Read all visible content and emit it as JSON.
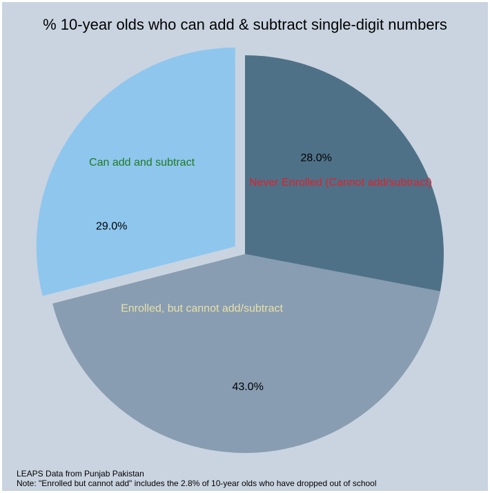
{
  "chart_data": {
    "type": "pie",
    "title": "% 10-year olds who can add & subtract single-digit numbers",
    "slices": [
      {
        "label": "Never Enrolled (Cannot add/subtract)",
        "value": 28.0,
        "value_label": "28.0%",
        "color": "#4f7188",
        "label_color": "#e0202a",
        "exploded": false
      },
      {
        "label": "Enrolled, but cannot add/subtract",
        "value": 43.0,
        "value_label": "43.0%",
        "color": "#889db1",
        "label_color": "#e8e0a8",
        "exploded": false
      },
      {
        "label": "Can add and subtract",
        "value": 29.0,
        "value_label": "29.0%",
        "color": "#8ec6ee",
        "label_color": "#1f7a1f",
        "exploded": true
      }
    ],
    "start": "12 o'clock",
    "direction": "clockwise",
    "legend": "none"
  },
  "notes": {
    "source": "LEAPS Data from Punjab Pakistan",
    "footnote": "Note: \"Enrolled but cannot add\" includes the 2.8% of 10-year olds who have dropped out of school"
  },
  "colors": {
    "background": "#c9d4e0",
    "value_label": "#000000"
  }
}
